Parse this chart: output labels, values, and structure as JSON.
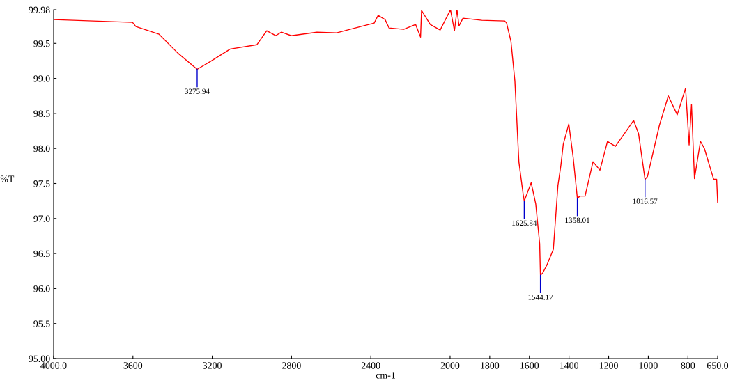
{
  "chart_data": {
    "type": "line",
    "xlabel": "cm-1",
    "ylabel": "%T",
    "x": [
      4000,
      3602,
      3585,
      3468,
      3373,
      3275.94,
      3204,
      3109,
      2975,
      2925,
      2880,
      2851,
      2801,
      2672,
      2572,
      2478,
      2383,
      2363,
      2328,
      2308,
      2234,
      2174,
      2149,
      2144,
      2100,
      2050,
      1998,
      1978,
      1965,
      1955,
      1935,
      1840,
      1725,
      1715,
      1693,
      1673,
      1653,
      1631,
      1625.84,
      1591,
      1568,
      1548,
      1544.17,
      1533,
      1511,
      1479,
      1456,
      1441,
      1429,
      1401,
      1379,
      1358.01,
      1344,
      1319,
      1279,
      1244,
      1206,
      1166,
      1116,
      1074,
      1049,
      1016.57,
      1004,
      944,
      899,
      854,
      812,
      794,
      782,
      767,
      737,
      717,
      682,
      670,
      655,
      650
    ],
    "series": [
      {
        "color": "#ff0000",
        "values": [
          99.84,
          99.8,
          99.74,
          99.63,
          99.36,
          99.13,
          99.25,
          99.42,
          99.48,
          99.68,
          99.61,
          99.66,
          99.61,
          99.66,
          99.65,
          99.72,
          99.79,
          99.9,
          99.84,
          99.72,
          99.7,
          99.77,
          99.59,
          99.97,
          99.77,
          99.69,
          99.98,
          99.68,
          99.98,
          99.75,
          99.86,
          99.83,
          99.82,
          99.79,
          99.53,
          98.96,
          97.81,
          97.34,
          97.25,
          97.51,
          97.21,
          96.64,
          96.19,
          96.22,
          96.34,
          96.56,
          97.47,
          97.76,
          98.06,
          98.35,
          97.87,
          97.29,
          97.32,
          97.32,
          97.81,
          97.69,
          98.1,
          98.03,
          98.23,
          98.4,
          98.21,
          97.56,
          97.6,
          98.33,
          98.75,
          98.48,
          98.86,
          98.05,
          98.63,
          97.57,
          98.1,
          98.0,
          97.67,
          97.56,
          97.56,
          97.23
        ]
      }
    ],
    "xlim": [
      4000,
      650
    ],
    "xticks": [
      {
        "value": 4000,
        "label": "4000.0"
      },
      3600,
      3200,
      2800,
      2400,
      2000,
      1800,
      1600,
      1400,
      1200,
      1000,
      800,
      {
        "value": 650,
        "label": "650.0"
      }
    ],
    "ylim": [
      95,
      99.98
    ],
    "yticks": [
      {
        "value": 95,
        "label": "95.00"
      },
      95.5,
      {
        "value": 96,
        "label": "96.0"
      },
      96.5,
      {
        "value": 97,
        "label": "97.0"
      },
      97.5,
      {
        "value": 98,
        "label": "98.0"
      },
      98.5,
      {
        "value": 99,
        "label": "99.0"
      },
      99.5,
      99.98
    ],
    "annotations": [
      {
        "text": "3275.94",
        "x": 3275.94,
        "y": 99.13
      },
      {
        "text": "1625.84",
        "x": 1625.84,
        "y": 97.25
      },
      {
        "text": "1544.17",
        "x": 1544.17,
        "y": 96.19
      },
      {
        "text": "1358.01",
        "x": 1358.01,
        "y": 97.29
      },
      {
        "text": "1016.57",
        "x": 1016.57,
        "y": 97.56
      }
    ],
    "grid": false,
    "marker": "none",
    "line_style": "solid"
  }
}
